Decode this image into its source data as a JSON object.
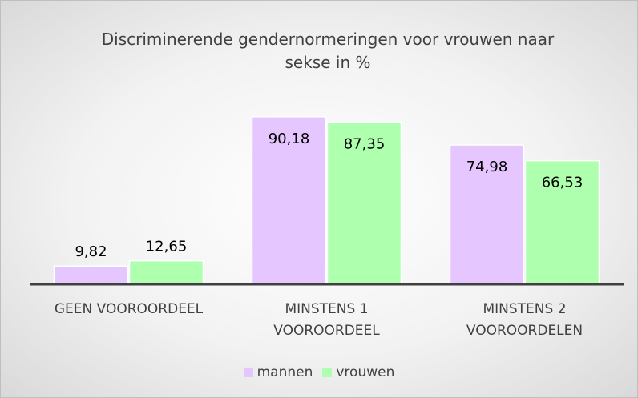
{
  "chart_data": {
    "type": "bar",
    "title": "Discriminerende  gendernormeringen voor vrouwen naar sekse in %",
    "categories": [
      "GEEN VOOROORDEEL",
      "MINSTENS 1 VOOROORDEEL",
      "MINSTENS 2 VOOROORDELEN"
    ],
    "series": [
      {
        "name": "mannen",
        "color": "#e6c6ff",
        "values": [
          9.82,
          90.18,
          74.98
        ],
        "value_labels": [
          "9,82",
          "90,18",
          "74,98"
        ]
      },
      {
        "name": "vrouwen",
        "color": "#aeffae",
        "values": [
          12.65,
          87.35,
          66.53
        ],
        "value_labels": [
          "12,65",
          "87,35",
          "66,53"
        ]
      }
    ],
    "ylim": [
      0,
      100
    ],
    "legend": "bottom"
  }
}
